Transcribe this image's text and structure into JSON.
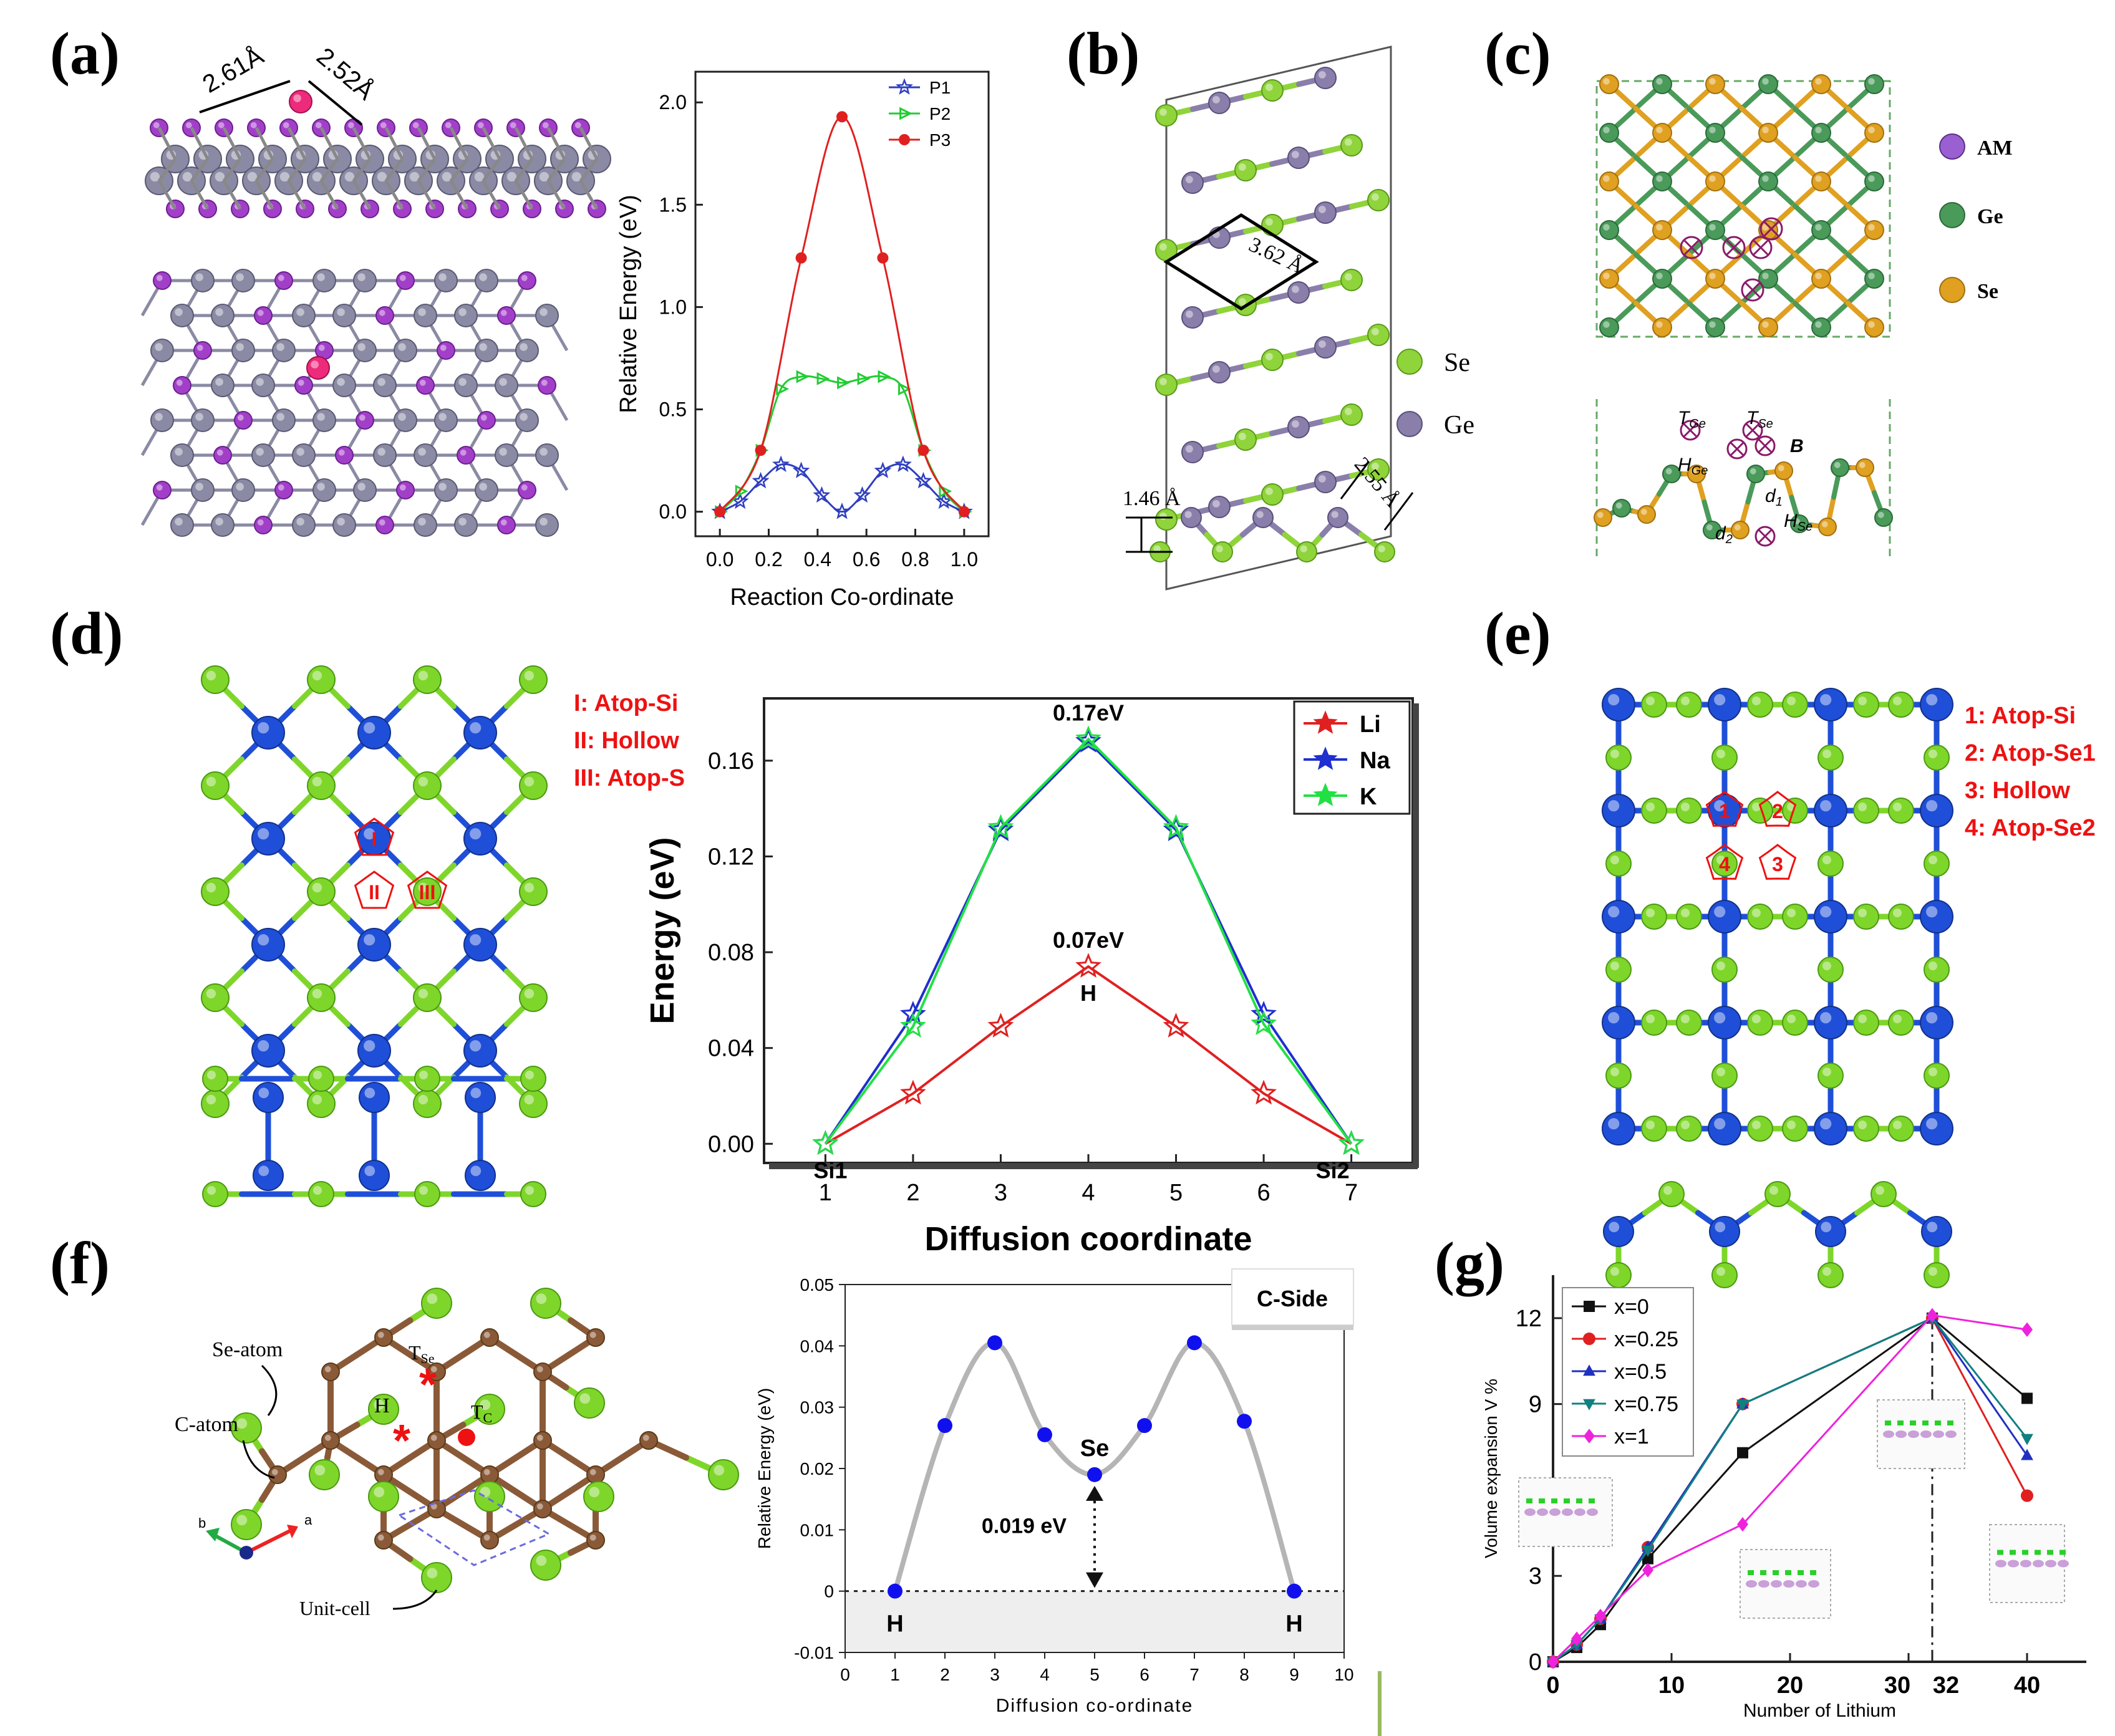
{
  "panels": {
    "a": {
      "label": "(a)"
    },
    "b": {
      "label": "(b)"
    },
    "c": {
      "label": "(c)"
    },
    "d": {
      "label": "(d)"
    },
    "e": {
      "label": "(e)"
    },
    "f": {
      "label": "(f)"
    },
    "g": {
      "label": "(g)"
    }
  },
  "structures": {
    "a": {
      "dist1": "2.61Å",
      "dist2": "2.52Å"
    },
    "b": {
      "lattice": "3.62 Å",
      "height": "1.46 Å",
      "bond": "2.55 Å",
      "legend": [
        "Se",
        "Ge"
      ]
    },
    "c": {
      "legend": [
        "AM",
        "Ge",
        "Se"
      ],
      "sites": {
        "tge": "T",
        "tge_sub": "Ge",
        "tse": "T",
        "tse_sub": "Se",
        "b": "B",
        "hge": "H",
        "hge_sub": "Ge",
        "d1": "d",
        "d1_sub": "1",
        "d2": "d",
        "d2_sub": "2",
        "hse": "H",
        "hse_sub": "Se"
      }
    },
    "d": {
      "sites": [
        "I: Atop-Si",
        "II: Hollow",
        "III: Atop-S"
      ],
      "markers": [
        "I",
        "II",
        "III"
      ]
    },
    "e": {
      "sites": [
        "1: Atop-Si",
        "2: Atop-Se1",
        "3: Hollow",
        "4: Atop-Se2"
      ],
      "markers": [
        "1",
        "2",
        "4",
        "3"
      ]
    },
    "f": {
      "se_atom": "Se-atom",
      "c_atom": "C-atom",
      "unit_cell": "Unit-cell",
      "tse": "T",
      "tse_sub": "Se",
      "tc": "T",
      "tc_sub": "C",
      "h": "H",
      "axis_b": "b",
      "axis_a": "a"
    }
  },
  "chart_data": [
    {
      "id": "a",
      "type": "line",
      "xlabel": "Reaction Co-ordinate",
      "ylabel": "Relative Energy (eV)",
      "xlim": [
        -0.1,
        1.1
      ],
      "ylim": [
        -0.12,
        2.15
      ],
      "xticks": [
        "0.0",
        "0.2",
        "0.4",
        "0.6",
        "0.8",
        "1.0"
      ],
      "yticks": [
        "0.0",
        "0.5",
        "1.0",
        "1.5",
        "2.0"
      ],
      "legend_position": "top-right",
      "series": [
        {
          "name": "P1",
          "color": "#2f3fbf",
          "marker": "star",
          "x": [
            0,
            0.083,
            0.167,
            0.25,
            0.333,
            0.417,
            0.5,
            0.583,
            0.667,
            0.75,
            0.833,
            0.917,
            1.0
          ],
          "y": [
            0,
            0.05,
            0.15,
            0.23,
            0.2,
            0.08,
            0.0,
            0.08,
            0.2,
            0.23,
            0.15,
            0.05,
            0
          ]
        },
        {
          "name": "P2",
          "color": "#22cc33",
          "marker": "triangle",
          "x": [
            0,
            0.083,
            0.167,
            0.25,
            0.333,
            0.417,
            0.5,
            0.583,
            0.667,
            0.75,
            0.833,
            0.917,
            1.0
          ],
          "y": [
            0,
            0.1,
            0.3,
            0.6,
            0.66,
            0.65,
            0.63,
            0.65,
            0.66,
            0.6,
            0.3,
            0.1,
            0
          ]
        },
        {
          "name": "P3",
          "color": "#e02020",
          "marker": "circle",
          "x": [
            0,
            0.167,
            0.333,
            0.5,
            0.667,
            0.833,
            1.0
          ],
          "y": [
            0,
            0.3,
            1.24,
            1.93,
            1.24,
            0.3,
            0
          ]
        }
      ]
    },
    {
      "id": "d",
      "type": "line",
      "xlabel": "Diffusion coordinate",
      "ylabel": "Energy (eV)",
      "xlim": [
        0.3,
        7.7
      ],
      "ylim": [
        -0.008,
        0.186
      ],
      "xticks": [
        "1",
        "2",
        "3",
        "4",
        "5",
        "6",
        "7"
      ],
      "yticks": [
        "0.00",
        "0.04",
        "0.08",
        "0.12",
        "0.16"
      ],
      "legend_position": "top-right",
      "annotations": [
        "0.17eV",
        "0.07eV",
        "H",
        "Si1",
        "Si2"
      ],
      "series": [
        {
          "name": "Li",
          "color": "#e02020",
          "x": [
            1,
            2,
            3,
            4,
            5,
            6,
            7
          ],
          "y": [
            0,
            0.021,
            0.049,
            0.074,
            0.049,
            0.021,
            0
          ]
        },
        {
          "name": "Na",
          "color": "#1f2fd0",
          "x": [
            1,
            2,
            3,
            4,
            5,
            6,
            7
          ],
          "y": [
            0,
            0.054,
            0.131,
            0.168,
            0.131,
            0.054,
            0
          ]
        },
        {
          "name": "K",
          "color": "#22e044",
          "x": [
            1,
            2,
            3,
            4,
            5,
            6,
            7
          ],
          "y": [
            0,
            0.049,
            0.132,
            0.169,
            0.132,
            0.05,
            0
          ]
        }
      ]
    },
    {
      "id": "f",
      "type": "line",
      "xlabel": "Diffusion co-ordinate",
      "ylabel": "Relative Energy (eV)",
      "xlim": [
        0,
        10
      ],
      "ylim": [
        -0.01,
        0.05
      ],
      "xticks": [
        "0",
        "1",
        "2",
        "3",
        "4",
        "5",
        "6",
        "7",
        "8",
        "9",
        "10"
      ],
      "yticks": [
        "-0.01",
        "0",
        "0.01",
        "0.02",
        "0.03",
        "0.04",
        "0.05"
      ],
      "tag": "C-Side",
      "annotations": [
        "Se",
        "0.019 eV",
        "H",
        "H"
      ],
      "series": [
        {
          "color": "#1010ee",
          "x": [
            1,
            2,
            3,
            4,
            5,
            6,
            7,
            8,
            9
          ],
          "y": [
            0,
            0.027,
            0.0405,
            0.0255,
            0.019,
            0.027,
            0.0405,
            0.0277,
            0
          ]
        }
      ]
    },
    {
      "id": "g",
      "type": "line",
      "xlabel": "Number of Lithium",
      "ylabel": "Volume expansion V %",
      "xlim": [
        0,
        45
      ],
      "ylim": [
        0,
        13.5
      ],
      "xticks": [
        "0",
        "10",
        "20",
        "30",
        "32",
        "40"
      ],
      "yticks": [
        "0",
        "3",
        "6",
        "9",
        "12"
      ],
      "legend_position": "top-left",
      "series": [
        {
          "name": "x=0",
          "color": "#111111",
          "marker": "square",
          "x": [
            0,
            2,
            4,
            8,
            16,
            32,
            40
          ],
          "y": [
            0,
            0.5,
            1.3,
            3.6,
            7.3,
            12.0,
            9.2
          ]
        },
        {
          "name": "x=0.25",
          "color": "#e02020",
          "marker": "circle",
          "x": [
            0,
            2,
            4,
            8,
            16,
            32,
            40
          ],
          "y": [
            0,
            0.6,
            1.5,
            4.0,
            9.0,
            12.0,
            5.8
          ]
        },
        {
          "name": "x=0.5",
          "color": "#2030c0",
          "marker": "triangle-up",
          "x": [
            0,
            2,
            4,
            8,
            16,
            32,
            40
          ],
          "y": [
            0,
            0.6,
            1.5,
            4.0,
            9.0,
            12.0,
            7.2
          ]
        },
        {
          "name": "x=0.75",
          "color": "#108080",
          "marker": "triangle-down",
          "x": [
            0,
            2,
            4,
            8,
            16,
            32,
            40
          ],
          "y": [
            0,
            0.6,
            1.5,
            3.9,
            9.0,
            12.0,
            7.8
          ]
        },
        {
          "name": "x=1",
          "color": "#ee22dd",
          "marker": "diamond",
          "x": [
            0,
            2,
            4,
            8,
            16,
            32,
            40
          ],
          "y": [
            0,
            0.8,
            1.6,
            3.2,
            4.8,
            12.1,
            11.6
          ]
        }
      ]
    }
  ]
}
